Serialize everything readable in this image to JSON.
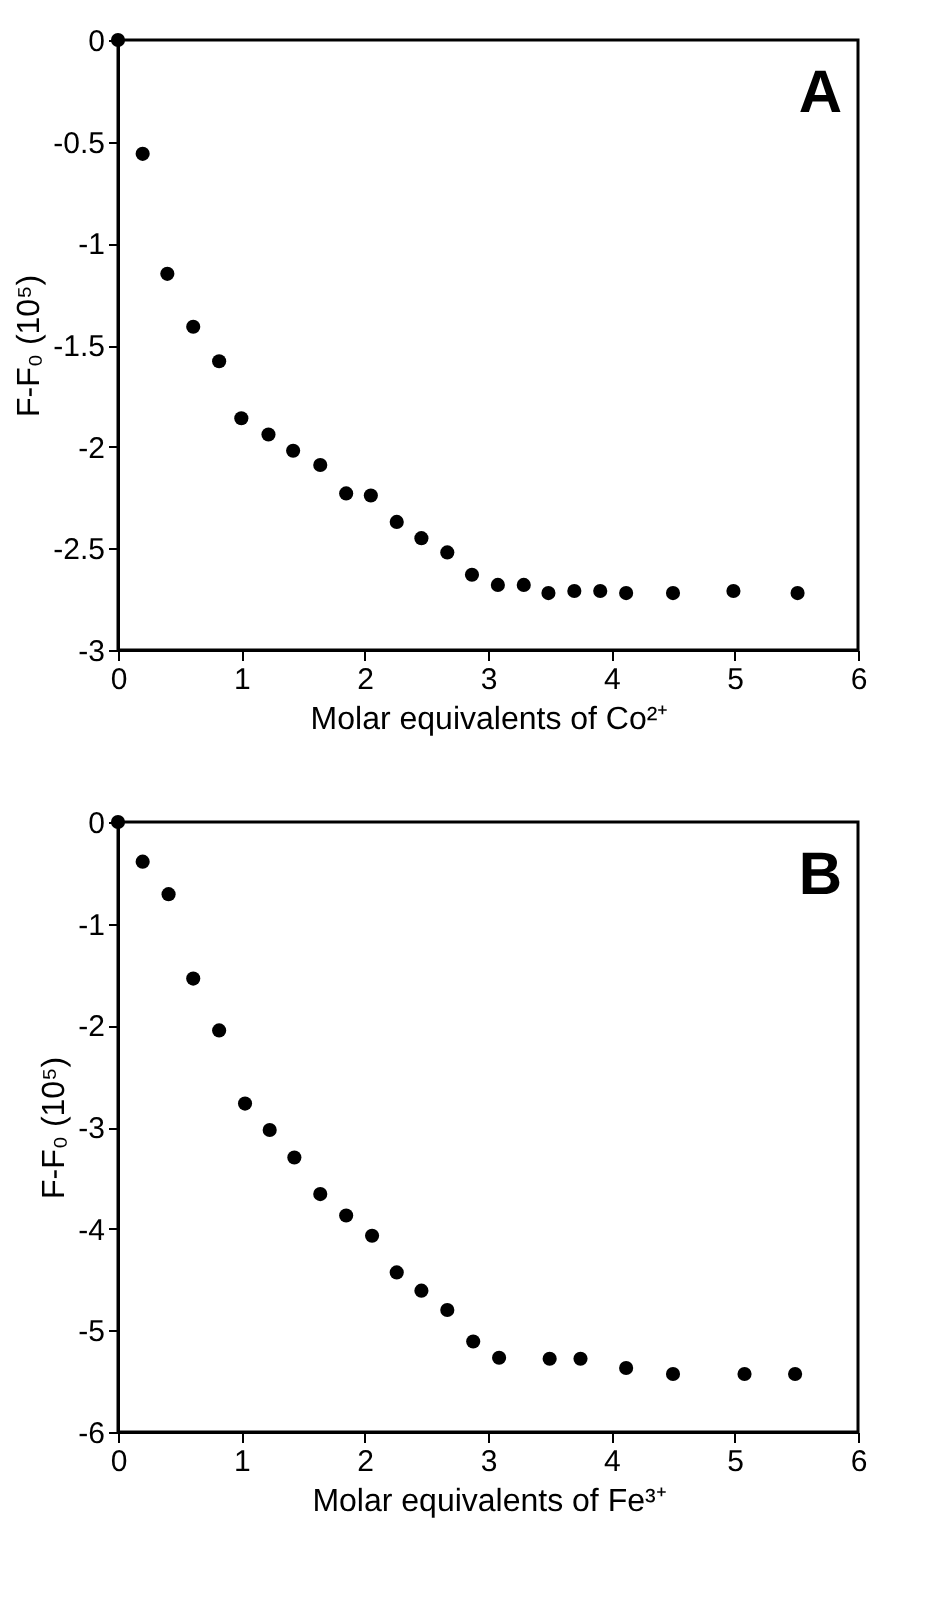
{
  "chart_data": [
    {
      "type": "scatter",
      "xlabel": "Molar equivalents of Co²⁺",
      "ylabel": "F-F₀ (10⁵)",
      "annotations": [
        "A"
      ],
      "grid": false,
      "xlim": [
        0,
        6
      ],
      "ylim": [
        -3,
        0
      ],
      "xticks": [
        0,
        1,
        2,
        3,
        4,
        5,
        6
      ],
      "yticks": [
        -3,
        -2.5,
        -2,
        -1.5,
        -1,
        -0.5,
        0
      ],
      "series": [
        {
          "color": "#000000",
          "x": [
            0,
            0.2,
            0.4,
            0.61,
            0.82,
            1.0,
            1.22,
            1.42,
            1.64,
            1.85,
            2.05,
            2.26,
            2.46,
            2.67,
            2.87,
            3.08,
            3.29,
            3.49,
            3.7,
            3.91,
            4.12,
            4.5,
            4.99,
            5.51
          ],
          "values": [
            0,
            -0.56,
            -1.15,
            -1.41,
            -1.58,
            -1.86,
            -1.94,
            -2.02,
            -2.09,
            -2.23,
            -2.24,
            -2.37,
            -2.45,
            -2.52,
            -2.63,
            -2.68,
            -2.68,
            -2.72,
            -2.71,
            -2.71,
            -2.72,
            -2.72,
            -2.71,
            -2.72
          ]
        }
      ]
    },
    {
      "type": "scatter",
      "xlabel": "Molar equivalents of Fe³⁺",
      "ylabel": "F-F₀ (10⁵)",
      "annotations": [
        "B"
      ],
      "grid": false,
      "xlim": [
        0,
        6
      ],
      "ylim": [
        -6,
        0
      ],
      "xticks": [
        0,
        1,
        2,
        3,
        4,
        5,
        6
      ],
      "yticks": [
        -6,
        -5,
        -4,
        -3,
        -2,
        -1,
        0
      ],
      "series": [
        {
          "color": "#000000",
          "x": [
            0,
            0.2,
            0.41,
            0.61,
            0.82,
            1.03,
            1.23,
            1.43,
            1.64,
            1.85,
            2.06,
            2.26,
            2.46,
            2.67,
            2.88,
            3.09,
            3.5,
            3.75,
            4.12,
            4.5,
            5.08,
            5.49
          ],
          "values": [
            0,
            -0.39,
            -0.71,
            -1.54,
            -2.05,
            -2.77,
            -3.03,
            -3.3,
            -3.66,
            -3.87,
            -4.07,
            -4.43,
            -4.61,
            -4.8,
            -5.11,
            -5.27,
            -5.28,
            -5.28,
            -5.37,
            -5.43,
            -5.43,
            -5.43
          ]
        }
      ]
    }
  ]
}
